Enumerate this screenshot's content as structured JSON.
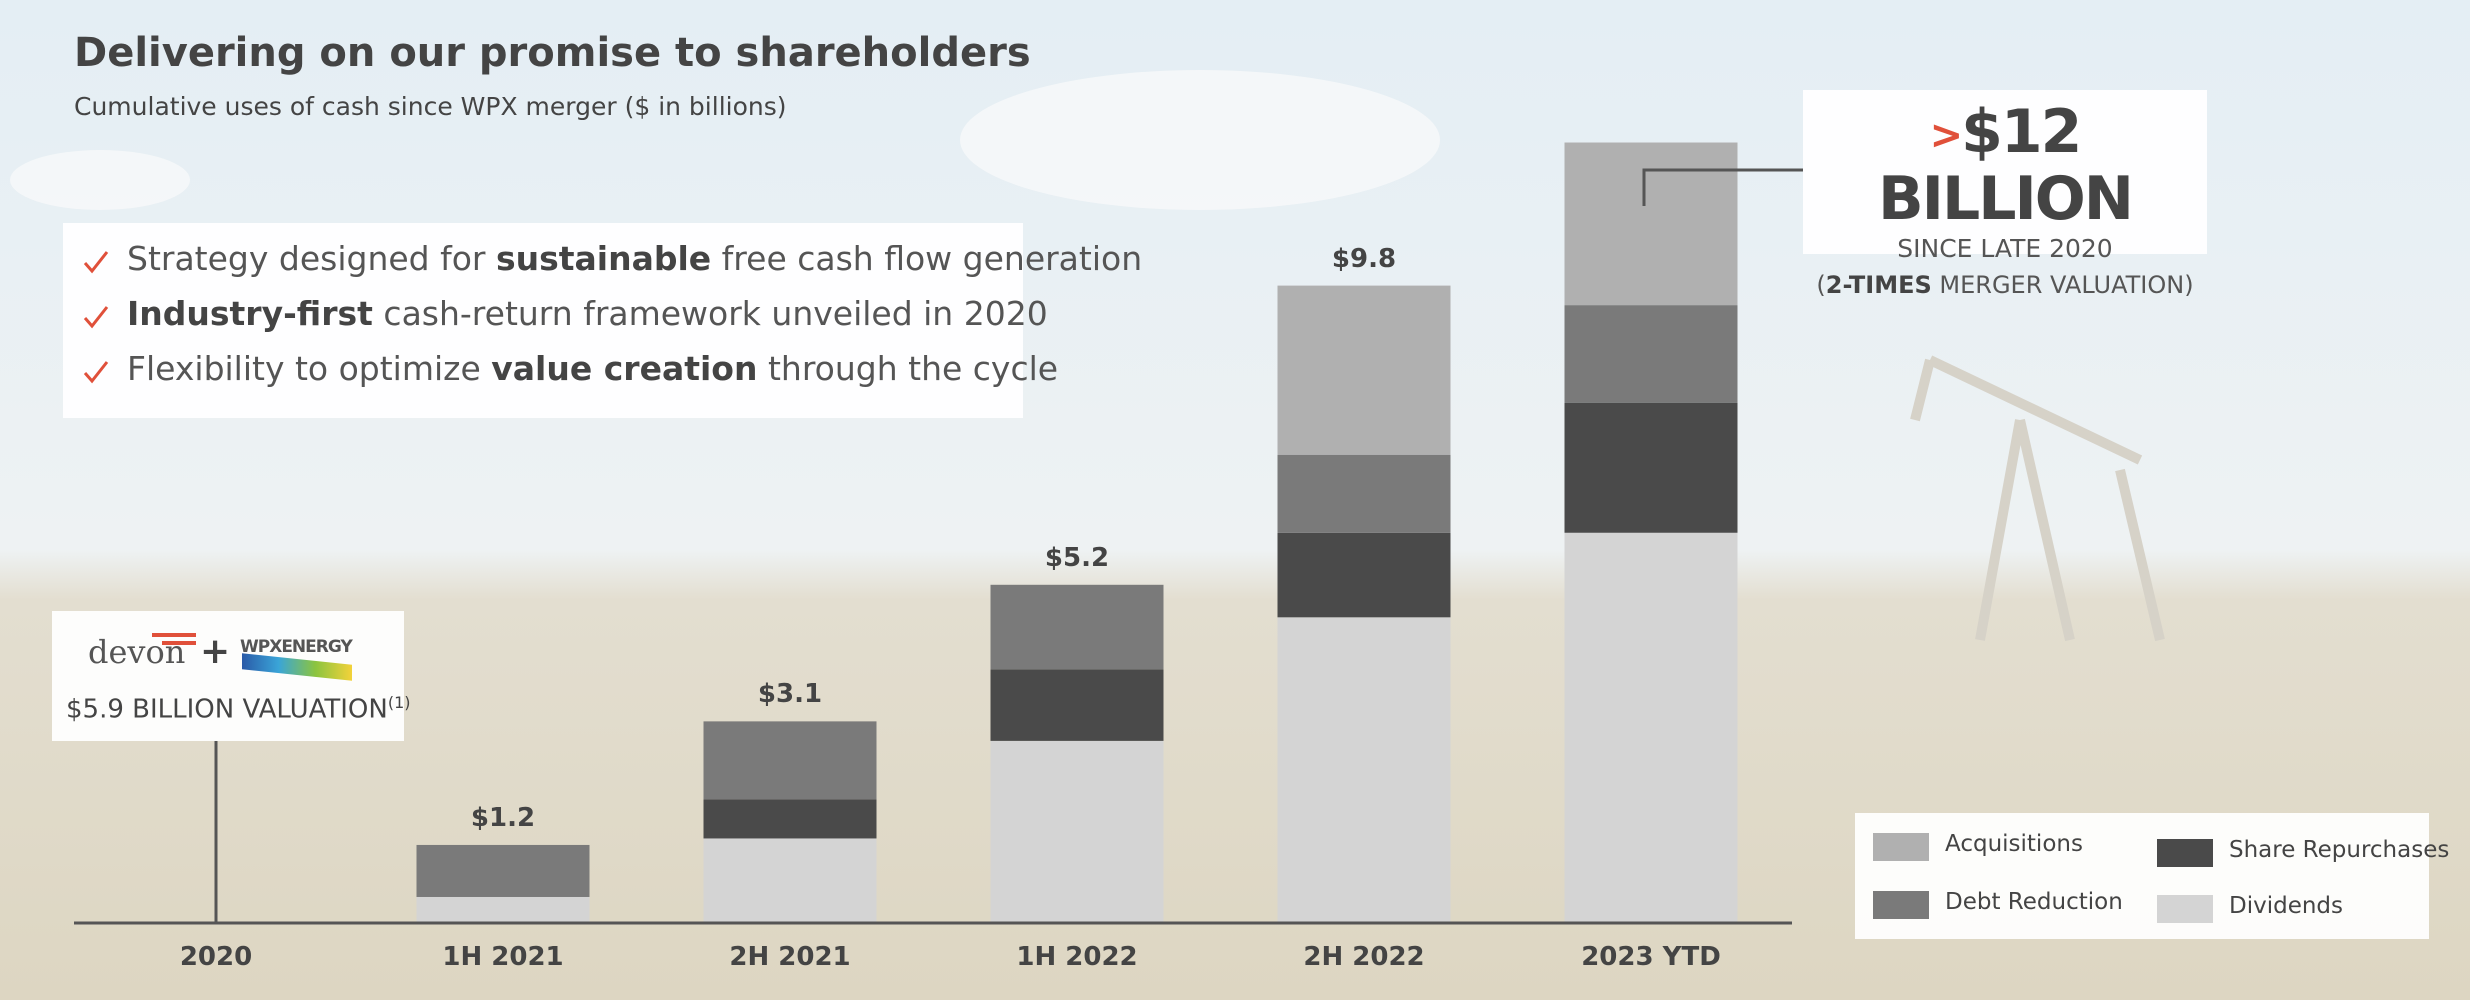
{
  "header": {
    "title": "Delivering on our promise to shareholders",
    "subtitle": "Cumulative uses of cash since WPX merger ($ in billions)"
  },
  "bullets": [
    [
      "Strategy designed for ",
      "sustainable",
      " free cash flow generation"
    ],
    [
      "",
      "Industry-first",
      " cash-return framework unveiled in 2020"
    ],
    [
      "Flexibility to optimize ",
      "value creation",
      " through the cycle"
    ]
  ],
  "merger": {
    "logo_left": "devon",
    "plus": "+",
    "logo_right": "WPXENERGY",
    "valuation": "$5.9 BILLION VALUATION",
    "note": "(1)"
  },
  "callout": {
    "marker": ">",
    "headline": "$12 BILLION",
    "line1": "SINCE LATE 2020",
    "line2": [
      "(",
      "2-TIMES",
      " MERGER VALUATION)"
    ]
  },
  "chart_data": {
    "type": "stacked_bar",
    "categories": [
      "2020",
      "1H 2021",
      "2H 2021",
      "1H 2022",
      "2H 2022",
      "2023 YTD"
    ],
    "series": [
      {
        "name": "Dividends",
        "color": "#d4d4d4",
        "values": [
          0,
          0.4,
          1.3,
          2.8,
          4.7,
          6.0
        ]
      },
      {
        "name": "Share Repurchases",
        "color": "#4a4a4a",
        "values": [
          0,
          0,
          0.6,
          1.1,
          1.3,
          2.0
        ]
      },
      {
        "name": "Debt Reduction",
        "color": "#7a7a7a",
        "values": [
          0,
          0.8,
          1.2,
          1.3,
          1.2,
          1.5
        ]
      },
      {
        "name": "Acquisitions",
        "color": "#b0b0b0",
        "values": [
          0,
          0,
          0,
          0,
          2.6,
          2.5
        ]
      }
    ],
    "total_labels": [
      null,
      "$1.2",
      "$3.1",
      "$5.2",
      "$9.8",
      null
    ],
    "ylim": [
      0,
      12.5
    ]
  }
}
